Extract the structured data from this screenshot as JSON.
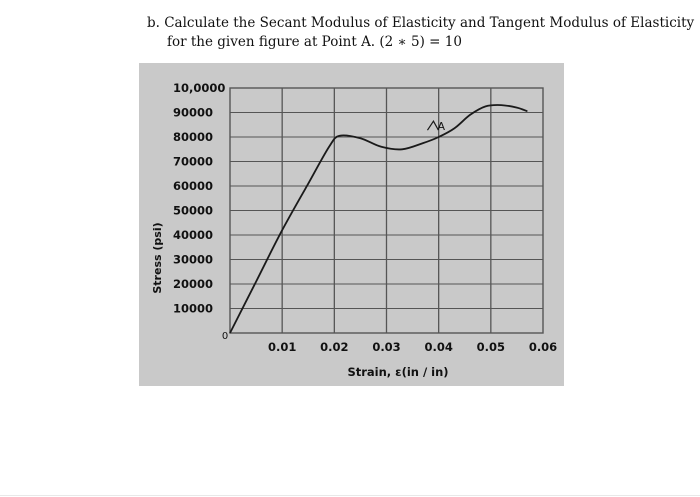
{
  "question": {
    "line1": "b.  Calculate the Secant Modulus of Elasticity and Tangent Modulus of Elasticity",
    "line2": "for the given figure at Point A.  (2 ∗ 5) = 10"
  },
  "chart_data": {
    "type": "line",
    "title": "",
    "xlabel": "Strain, ε(in / in)",
    "ylabel": "Stress (psi)",
    "x_ticks": [
      "0",
      "0.01",
      "0.02",
      "0.03",
      "0.04",
      "0.05",
      "0.06"
    ],
    "y_ticks": [
      "10000",
      "20000",
      "30000",
      "40000",
      "50000",
      "60000",
      "70000",
      "80000",
      "90000",
      "10,0000"
    ],
    "xlim": [
      0,
      0.06
    ],
    "ylim": [
      0,
      100000
    ],
    "grid": true,
    "series": [
      {
        "x": [
          0,
          0.005,
          0.01,
          0.015,
          0.019,
          0.021,
          0.025,
          0.029,
          0.033,
          0.037,
          0.04,
          0.043,
          0.046,
          0.049,
          0.052,
          0.055,
          0.057
        ],
        "y": [
          0,
          21000,
          42000,
          61000,
          76000,
          80500,
          79500,
          76000,
          75000,
          77500,
          80000,
          83500,
          89000,
          92500,
          93000,
          92000,
          90500
        ]
      }
    ],
    "annotations": [
      {
        "label": "A",
        "x": 0.039,
        "y": 84000
      }
    ],
    "colors": {
      "line": "#1a1a1a",
      "grid": "#555555",
      "background": "#c9c9c9"
    }
  }
}
